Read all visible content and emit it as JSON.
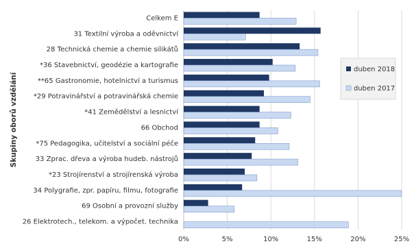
{
  "chart_data": {
    "type": "bar",
    "orientation": "horizontal",
    "y_axis_label": "Skupiny oborů vzdělání",
    "categories": [
      "Celkem E",
      "31 Textilní výroba a oděvnictví",
      "28 Technická chemie a chemie silikátů",
      "*36 Stavebnictví, geodézie a kartografie",
      "**65 Gastronomie, hotelnictví a turismus",
      "*29 Potravinářství a potravinářská chemie",
      "*41 Zemědělství a lesnictví",
      "66 Obchod",
      "*75 Pedagogika, učitelství a sociální péče",
      "33 Zprac. dřeva a výroba hudeb. nástrojů",
      "*23 Strojírenství a strojírenská výroba",
      "34 Polygrafie, zpr. papíru, filmu, fotografie",
      "69 Osobní a provozní služby",
      "26 Elektrotech., telekom. a výpočet. technika"
    ],
    "series": [
      {
        "name": "duben 2018",
        "color": "#1f3864",
        "values": [
          8.7,
          15.7,
          13.3,
          10.2,
          9.8,
          9.2,
          8.7,
          8.7,
          8.2,
          7.8,
          7.0,
          6.7,
          2.8,
          null
        ]
      },
      {
        "name": "duben 2017",
        "color": "#c9d9f2",
        "values": [
          12.9,
          7.1,
          15.4,
          12.8,
          15.6,
          14.5,
          12.3,
          10.8,
          12.1,
          13.1,
          8.4,
          25,
          5.8,
          18.9
        ]
      }
    ],
    "xlim": [
      0,
      25
    ],
    "xticks": [
      {
        "value": 0,
        "label": "0%"
      },
      {
        "value": 5,
        "label": "5%"
      },
      {
        "value": 10,
        "label": "10%"
      },
      {
        "value": 15,
        "label": "15%"
      },
      {
        "value": 20,
        "label": "20%"
      },
      {
        "value": 25,
        "label": "25%"
      }
    ],
    "grid": true,
    "legend": "right"
  }
}
